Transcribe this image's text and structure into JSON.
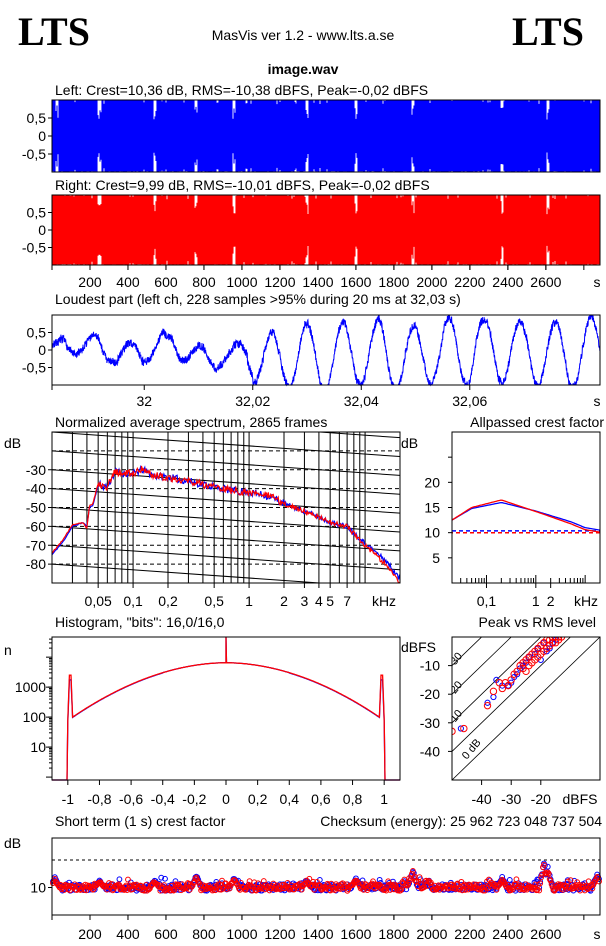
{
  "header": {
    "logo_left": "LTS",
    "logo_right": "LTS",
    "app_title": "MasVis ver 1.2 - www.lts.a.se",
    "file_name": "image.wav"
  },
  "colors": {
    "left": "#0000ff",
    "right": "#ff0000",
    "grid": "#000000"
  },
  "chart_data": [
    {
      "id": "waveform-left",
      "type": "area",
      "title": "Left: Crest=10,36 dB, RMS=-10,38 dBFS, Peak=-0,02 dBFS",
      "xlim": [
        0,
        2885
      ],
      "ylim": [
        -1,
        1
      ],
      "yticks": [
        {
          "v": 0.5,
          "label": "0,5"
        },
        {
          "v": 0,
          "label": "0"
        },
        {
          "v": -0.5,
          "label": "-0,5"
        }
      ],
      "dips_s": [
        25,
        250,
        540,
        760,
        960,
        1340,
        1600,
        1900,
        2370,
        2610
      ],
      "color": "#0000ff"
    },
    {
      "id": "waveform-right",
      "type": "area",
      "title": "Right: Crest=9,99 dB, RMS=-10,01 dBFS, Peak=-0,02 dBFS",
      "xlim": [
        0,
        2885
      ],
      "ylim": [
        -1,
        1
      ],
      "yticks": [
        {
          "v": 0.5,
          "label": "0,5"
        },
        {
          "v": 0,
          "label": "0"
        },
        {
          "v": -0.5,
          "label": "-0,5"
        }
      ],
      "xticks": [
        {
          "v": 200,
          "label": "200"
        },
        {
          "v": 400,
          "label": "400"
        },
        {
          "v": 600,
          "label": "600"
        },
        {
          "v": 800,
          "label": "800"
        },
        {
          "v": 1000,
          "label": "1000"
        },
        {
          "v": 1200,
          "label": "1200"
        },
        {
          "v": 1400,
          "label": "1400"
        },
        {
          "v": 1600,
          "label": "1600"
        },
        {
          "v": 1800,
          "label": "1800"
        },
        {
          "v": 2000,
          "label": "2000"
        },
        {
          "v": 2200,
          "label": "2200"
        },
        {
          "v": 2400,
          "label": "2400"
        },
        {
          "v": 2600,
          "label": "2600"
        }
      ],
      "xunit": "s",
      "dips_s": [
        250,
        540,
        760,
        960,
        1340,
        1600,
        1900,
        2370,
        2610
      ],
      "color": "#ff0000"
    },
    {
      "id": "loudest-part",
      "type": "line",
      "title": "Loudest part (left  ch, 228 samples >95% during 20 ms at 32,03 s)",
      "xlim": [
        31.983,
        32.084
      ],
      "ylim": [
        -1,
        1
      ],
      "yticks": [
        {
          "v": 0.5,
          "label": "0,5"
        },
        {
          "v": 0,
          "label": "0"
        },
        {
          "v": -0.5,
          "label": "-0,5"
        }
      ],
      "xticks": [
        {
          "v": 32,
          "label": "32"
        },
        {
          "v": 32.02,
          "label": "32,02"
        },
        {
          "v": 32.04,
          "label": "32,04"
        },
        {
          "v": 32.06,
          "label": "32,06"
        }
      ],
      "xunit": "s",
      "dominant_freq_hz": 153,
      "color": "#0000ff"
    },
    {
      "id": "spectrum",
      "type": "line",
      "title": "Normalized average spectrum, 2865 frames",
      "ylabel": "dB",
      "xunit": "kHz",
      "xscale": "log",
      "xlim": [
        0.02,
        20
      ],
      "ylim": [
        -90,
        -10
      ],
      "yticks": [
        {
          "v": -30,
          "label": "-30"
        },
        {
          "v": -40,
          "label": "-40"
        },
        {
          "v": -50,
          "label": "-50"
        },
        {
          "v": -60,
          "label": "-60"
        },
        {
          "v": -70,
          "label": "-70"
        },
        {
          "v": -80,
          "label": "-80"
        }
      ],
      "xticks": [
        {
          "v": 0.05,
          "label": "0,05"
        },
        {
          "v": 0.1,
          "label": "0,1"
        },
        {
          "v": 0.2,
          "label": "0,2"
        },
        {
          "v": 0.5,
          "label": "0,5"
        },
        {
          "v": 1,
          "label": "1"
        },
        {
          "v": 2,
          "label": "2"
        },
        {
          "v": 3,
          "label": "3"
        },
        {
          "v": 4,
          "label": "4"
        },
        {
          "v": 5,
          "label": "5"
        },
        {
          "v": 7,
          "label": "7"
        }
      ],
      "series": [
        {
          "color": "#0000ff",
          "points": [
            [
              0.02,
              -75
            ],
            [
              0.025,
              -68
            ],
            [
              0.03,
              -60
            ],
            [
              0.037,
              -58
            ],
            [
              0.04,
              -60
            ],
            [
              0.042,
              -50
            ],
            [
              0.045,
              -49
            ],
            [
              0.05,
              -38
            ],
            [
              0.06,
              -39
            ],
            [
              0.07,
              -31
            ],
            [
              0.08,
              -32
            ],
            [
              0.1,
              -32
            ],
            [
              0.12,
              -30
            ],
            [
              0.15,
              -33
            ],
            [
              0.2,
              -34
            ],
            [
              0.3,
              -36
            ],
            [
              0.5,
              -39
            ],
            [
              0.7,
              -41
            ],
            [
              1,
              -42
            ],
            [
              1.5,
              -44
            ],
            [
              2,
              -48
            ],
            [
              3,
              -52
            ],
            [
              4,
              -55
            ],
            [
              5,
              -58
            ],
            [
              7,
              -60
            ],
            [
              10,
              -69
            ],
            [
              15,
              -78
            ],
            [
              20,
              -88
            ]
          ]
        },
        {
          "color": "#ff0000",
          "points": [
            [
              0.02,
              -74
            ],
            [
              0.025,
              -67
            ],
            [
              0.03,
              -59
            ],
            [
              0.037,
              -58
            ],
            [
              0.04,
              -61
            ],
            [
              0.042,
              -49
            ],
            [
              0.045,
              -48
            ],
            [
              0.05,
              -37
            ],
            [
              0.06,
              -39
            ],
            [
              0.07,
              -31
            ],
            [
              0.08,
              -32
            ],
            [
              0.1,
              -32
            ],
            [
              0.12,
              -29
            ],
            [
              0.15,
              -33
            ],
            [
              0.2,
              -34
            ],
            [
              0.3,
              -36
            ],
            [
              0.5,
              -39
            ],
            [
              0.7,
              -41
            ],
            [
              1,
              -42
            ],
            [
              1.5,
              -44
            ],
            [
              2,
              -48
            ],
            [
              3,
              -52
            ],
            [
              4,
              -55
            ],
            [
              5,
              -58
            ],
            [
              7,
              -60
            ],
            [
              10,
              -70
            ],
            [
              15,
              -80
            ],
            [
              20,
              -90
            ]
          ]
        }
      ]
    },
    {
      "id": "allpassed-crest",
      "type": "line",
      "title": "Allpassed crest factor",
      "ylabel": "dB",
      "xunit": "kHz",
      "xscale": "log",
      "xlim": [
        0.02,
        20
      ],
      "ylim": [
        0,
        30
      ],
      "yticks": [
        {
          "v": 20,
          "label": "20"
        },
        {
          "v": 15,
          "label": "15"
        },
        {
          "v": 10,
          "label": "10"
        },
        {
          "v": 5,
          "label": "5"
        }
      ],
      "xticks": [
        {
          "v": 0.1,
          "label": "0,1"
        },
        {
          "v": 1,
          "label": "1"
        },
        {
          "v": 2,
          "label": "2"
        }
      ],
      "series": [
        {
          "color": "#0000ff",
          "points": [
            [
              0.02,
              12.5
            ],
            [
              0.05,
              14.8
            ],
            [
              0.2,
              16.0
            ],
            [
              1,
              14.3
            ],
            [
              5,
              12.2
            ],
            [
              10,
              11.0
            ],
            [
              20,
              10.5
            ]
          ],
          "reference": 10.36
        },
        {
          "color": "#ff0000",
          "points": [
            [
              0.02,
              12.5
            ],
            [
              0.05,
              15.0
            ],
            [
              0.2,
              16.5
            ],
            [
              1,
              14.2
            ],
            [
              5,
              11.8
            ],
            [
              10,
              10.6
            ],
            [
              20,
              10.1
            ]
          ],
          "reference": 9.99
        }
      ]
    },
    {
      "id": "histogram",
      "type": "line",
      "title": "Histogram, \"bits\": 16,0/16,0",
      "ylabel": "n",
      "xlim": [
        -1.1,
        1.1
      ],
      "yscale": "log",
      "ylim": [
        0.8,
        47000
      ],
      "yticks": [
        {
          "v": 1000,
          "label": "1000"
        },
        {
          "v": 100,
          "label": "100"
        },
        {
          "v": 10,
          "label": "10"
        }
      ],
      "xticks": [
        {
          "v": -1,
          "label": "-1"
        },
        {
          "v": -0.8,
          "label": "-0,8"
        },
        {
          "v": -0.6,
          "label": "-0,6"
        },
        {
          "v": -0.4,
          "label": "-0,4"
        },
        {
          "v": -0.2,
          "label": "-0,2"
        },
        {
          "v": 0,
          "label": "0"
        },
        {
          "v": 0.2,
          "label": "0,2"
        },
        {
          "v": 0.4,
          "label": "0,4"
        },
        {
          "v": 0.6,
          "label": "0,6"
        },
        {
          "v": 0.8,
          "label": "0,8"
        },
        {
          "v": 1,
          "label": "1"
        }
      ],
      "center_count": 6500,
      "edge_count": 100,
      "clip_spike_count": 2500,
      "zero_spike_count": 47000,
      "series": [
        {
          "color": "#0000ff",
          "edge_scale": 0.85
        },
        {
          "color": "#ff0000",
          "edge_scale": 1.0
        }
      ]
    },
    {
      "id": "peak-vs-rms",
      "type": "scatter",
      "title": "Peak vs RMS level",
      "xlabel": "dBFS",
      "ylabel": "dBFS",
      "xlim": [
        -50,
        0
      ],
      "ylim": [
        -50,
        0
      ],
      "yticks": [
        {
          "v": -10,
          "label": "-10"
        },
        {
          "v": -20,
          "label": "-20"
        },
        {
          "v": -30,
          "label": "-30"
        },
        {
          "v": -40,
          "label": "-40"
        }
      ],
      "xticks": [
        {
          "v": -40,
          "label": "-40"
        },
        {
          "v": -30,
          "label": "-30"
        },
        {
          "v": -20,
          "label": "-20"
        }
      ],
      "crest_lines": [
        {
          "v": 0,
          "label": "0 dB"
        },
        {
          "v": 10,
          "label": "10"
        },
        {
          "v": 20,
          "label": "20"
        },
        {
          "v": 30,
          "label": "30"
        },
        {
          "v": 40,
          "label": "40"
        }
      ],
      "series": [
        {
          "color": "#0000ff",
          "points": [
            [
              -47,
              -32
            ],
            [
              -38,
              -23
            ],
            [
              -36,
              -21
            ],
            [
              -35,
              -15
            ],
            [
              -33,
              -17
            ],
            [
              -31,
              -17
            ],
            [
              -30,
              -16
            ],
            [
              -29,
              -14
            ],
            [
              -28,
              -13
            ],
            [
              -27,
              -11
            ],
            [
              -26,
              -10
            ],
            [
              -25,
              -9
            ],
            [
              -24,
              -7
            ],
            [
              -22,
              -6
            ],
            [
              -21,
              -4
            ],
            [
              -20,
              -8
            ],
            [
              -19,
              -2
            ],
            [
              -18,
              -5
            ],
            [
              -17,
              -4
            ],
            [
              -16,
              -2
            ],
            [
              -15,
              -1
            ]
          ]
        },
        {
          "color": "#ff0000",
          "points": [
            [
              -50,
              -33
            ],
            [
              -46,
              -32
            ],
            [
              -38,
              -24
            ],
            [
              -36,
              -19
            ],
            [
              -34,
              -16
            ],
            [
              -33,
              -18
            ],
            [
              -32,
              -16
            ],
            [
              -31,
              -17
            ],
            [
              -30,
              -15
            ],
            [
              -29,
              -13
            ],
            [
              -28,
              -12
            ],
            [
              -27,
              -10
            ],
            [
              -26,
              -9
            ],
            [
              -26,
              -11
            ],
            [
              -25,
              -8
            ],
            [
              -25,
              -12
            ],
            [
              -24,
              -7
            ],
            [
              -24,
              -10
            ],
            [
              -23,
              -6
            ],
            [
              -23,
              -9
            ],
            [
              -22,
              -5
            ],
            [
              -22,
              -8
            ],
            [
              -21,
              -4
            ],
            [
              -21,
              -7
            ],
            [
              -20,
              -3
            ],
            [
              -20,
              -6
            ],
            [
              -19,
              -2
            ],
            [
              -19,
              -5
            ],
            [
              -18,
              -1
            ],
            [
              -18,
              -4
            ],
            [
              -17,
              -1
            ],
            [
              -17,
              -3
            ],
            [
              -16,
              0
            ],
            [
              -16,
              -2
            ],
            [
              -15,
              0
            ],
            [
              -15,
              -2
            ],
            [
              -14,
              0
            ],
            [
              -14,
              -1
            ],
            [
              -13,
              0
            ]
          ]
        }
      ]
    },
    {
      "id": "short-term-crest",
      "type": "scatter",
      "title": "Short term (1 s) crest factor",
      "checksum_label": "Checksum (energy):  25 962 723 048 737 504",
      "ylabel": "dB",
      "xunit": "s",
      "xlim": [
        0,
        2885
      ],
      "ylim": [
        0,
        28
      ],
      "reference_line": 20,
      "yticks": [
        {
          "v": 10,
          "label": "10"
        }
      ],
      "xticks": [
        {
          "v": 200,
          "label": "200"
        },
        {
          "v": 400,
          "label": "400"
        },
        {
          "v": 600,
          "label": "600"
        },
        {
          "v": 800,
          "label": "800"
        },
        {
          "v": 1000,
          "label": "1000"
        },
        {
          "v": 1200,
          "label": "1200"
        },
        {
          "v": 1400,
          "label": "1400"
        },
        {
          "v": 1600,
          "label": "1600"
        },
        {
          "v": 1800,
          "label": "1800"
        },
        {
          "v": 2000,
          "label": "2000"
        },
        {
          "v": 2200,
          "label": "2200"
        },
        {
          "v": 2400,
          "label": "2400"
        },
        {
          "v": 2600,
          "label": "2600"
        }
      ],
      "typical_db": 10,
      "spikes": [
        [
          15,
          14
        ],
        [
          250,
          13
        ],
        [
          540,
          13
        ],
        [
          760,
          15
        ],
        [
          960,
          14
        ],
        [
          1340,
          13
        ],
        [
          1600,
          14
        ],
        [
          1900,
          16
        ],
        [
          2370,
          14
        ],
        [
          2590,
          21
        ],
        [
          2610,
          18
        ],
        [
          2870,
          16
        ]
      ],
      "series": [
        {
          "color": "#0000ff"
        },
        {
          "color": "#ff0000"
        }
      ]
    }
  ]
}
